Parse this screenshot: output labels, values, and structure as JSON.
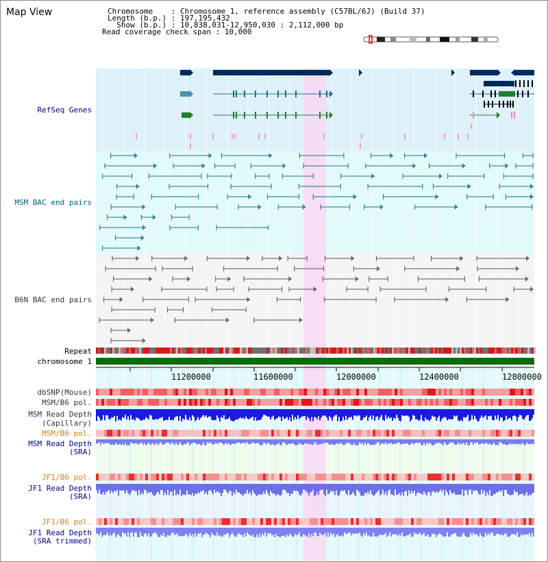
{
  "page": {
    "title": "Map View"
  },
  "info": {
    "chromosome": "Chromosome    : Chromosome 1, reference assembly (C57BL/6J) (Build 37)",
    "length": "Length (b.p.) : 197,195,432",
    "show": "  Show (b.p.) : 10,838,031-12,950,030 : 2,112,000 bp",
    "coverage": "Read coverage check span : 10,000"
  },
  "tracks": {
    "refseq": "RefSeq Genes",
    "msm_bac": "MSM BAC end pairs",
    "b6n_bac": "B6N BAC end pairs",
    "repeat": "Repeat",
    "chromosome": "chromosome 1",
    "dbsnp": "dbSNP(Mouse)",
    "msm_b6_pol_1": "MSM/B6 pol.",
    "msm_depth_cap_1": "MSM Read Depth",
    "msm_depth_cap_2": "(Capillary)",
    "msm_b6_pol_2": "MSM/B6 pol.",
    "msm_depth_sra_1": "MSM Read Depth",
    "msm_depth_sra_2": "(SRA)",
    "jf1_b6_pol_1": "JF1/B6 pol.",
    "jf1_depth_sra_1": "JF1 Read Depth",
    "jf1_depth_sra_2": "(SRA)",
    "jf1_b6_pol_2": "JF1/B6 pol.",
    "jf1_depth_trim_1": "JF1 Read Depth",
    "jf1_depth_trim_2": "(SRA trimmed)"
  },
  "axis": {
    "ticks": [
      "11200000",
      "11600000",
      "12000000",
      "12400000",
      "12800000"
    ]
  },
  "colors": {
    "refseq_label": "#00008b",
    "msm_label": "#006080",
    "b6n_label": "#333333",
    "orange_label": "#e08000",
    "blue_label": "#00008b",
    "highlight": "#f8d8f4",
    "gene_dark": "#002a5c",
    "msm_line": "#1a6f8a",
    "b6n_line": "#555555"
  }
}
